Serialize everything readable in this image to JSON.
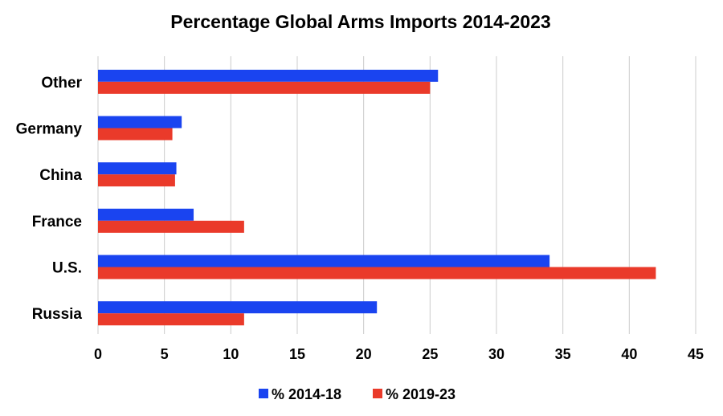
{
  "chart_data": {
    "type": "bar",
    "orientation": "horizontal",
    "title": "Percentage Global Arms Imports 2014-2023",
    "categories": [
      "Russia",
      "U.S.",
      "France",
      "China",
      "Germany",
      "Other"
    ],
    "series": [
      {
        "name": "% 2014-18",
        "color": "#1a44f0",
        "values": [
          21,
          34,
          7.2,
          5.9,
          6.3,
          25.6
        ]
      },
      {
        "name": "% 2019-23",
        "color": "#ea3a2a",
        "values": [
          11,
          42,
          11,
          5.8,
          5.6,
          25
        ]
      }
    ],
    "xlim": [
      0,
      45
    ],
    "xticks": [
      "0",
      "5",
      "10",
      "15",
      "20",
      "25",
      "30",
      "35",
      "40",
      "45"
    ],
    "grid": true,
    "legend_position": "bottom"
  }
}
